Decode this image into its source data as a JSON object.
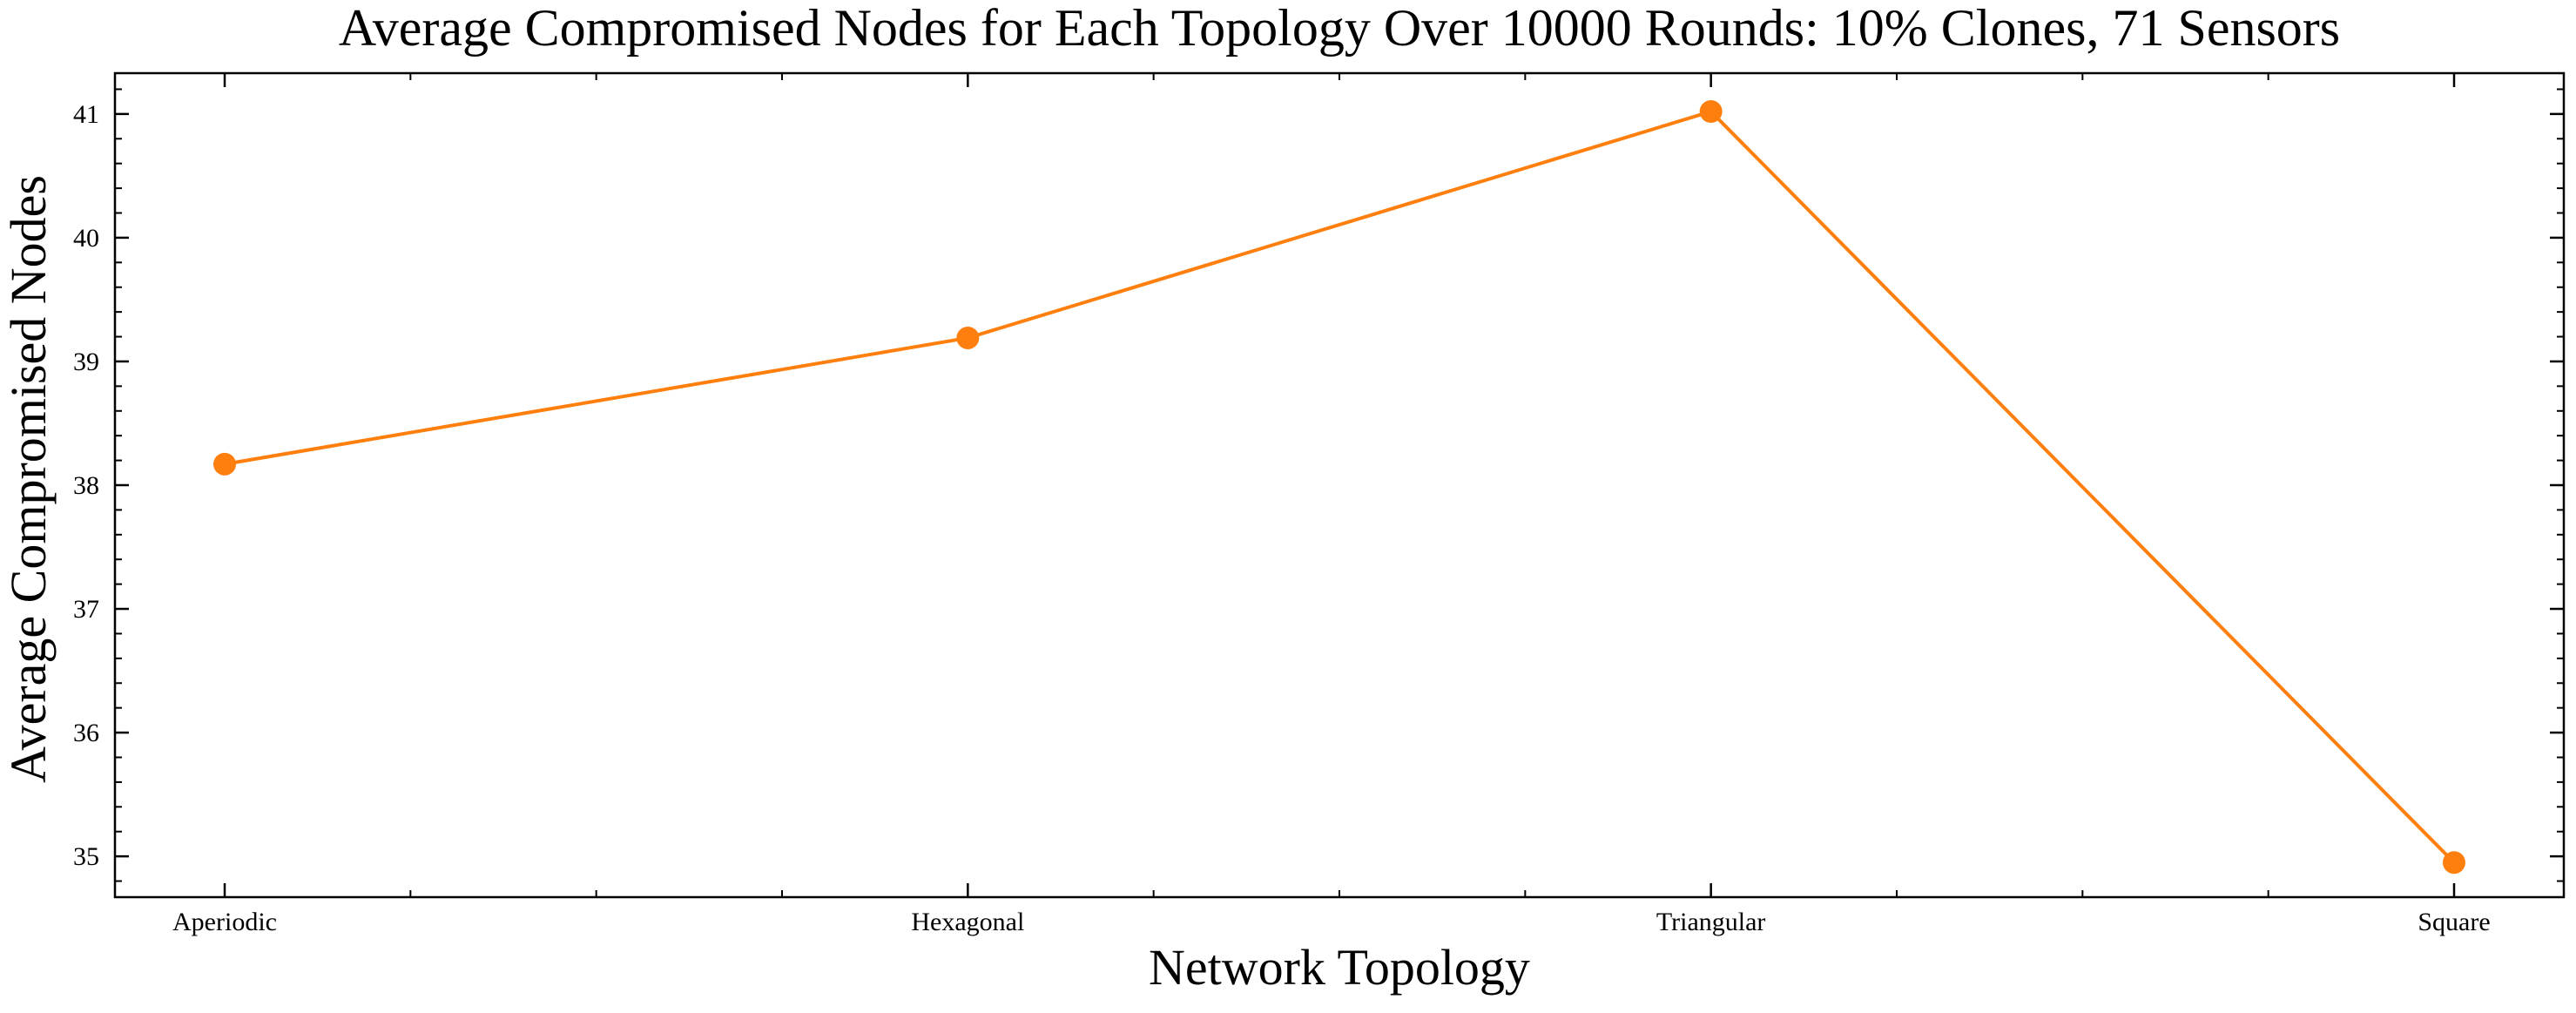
{
  "chart_data": {
    "type": "line",
    "title": "Average Compromised Nodes for Each Topology Over 10000 Rounds: 10% Clones, 71 Sensors",
    "xlabel": "Network Topology",
    "ylabel": "Average Compromised Nodes",
    "categories": [
      "Aperiodic",
      "Hexagonal",
      "Triangular",
      "Square"
    ],
    "series": [
      {
        "values": [
          38.17,
          39.19,
          41.02,
          34.95
        ],
        "color": "#ff7f0e",
        "marker": "circle"
      }
    ],
    "ylim": [
      34.67,
      41.33
    ],
    "yticks": [
      35,
      36,
      37,
      38,
      39,
      40,
      41
    ],
    "yticks_minor_step": 0.2,
    "xticks_minor_per_interval": 4,
    "grid": false,
    "legend": "none",
    "tick_direction": "in",
    "mirror_ticks": true
  }
}
